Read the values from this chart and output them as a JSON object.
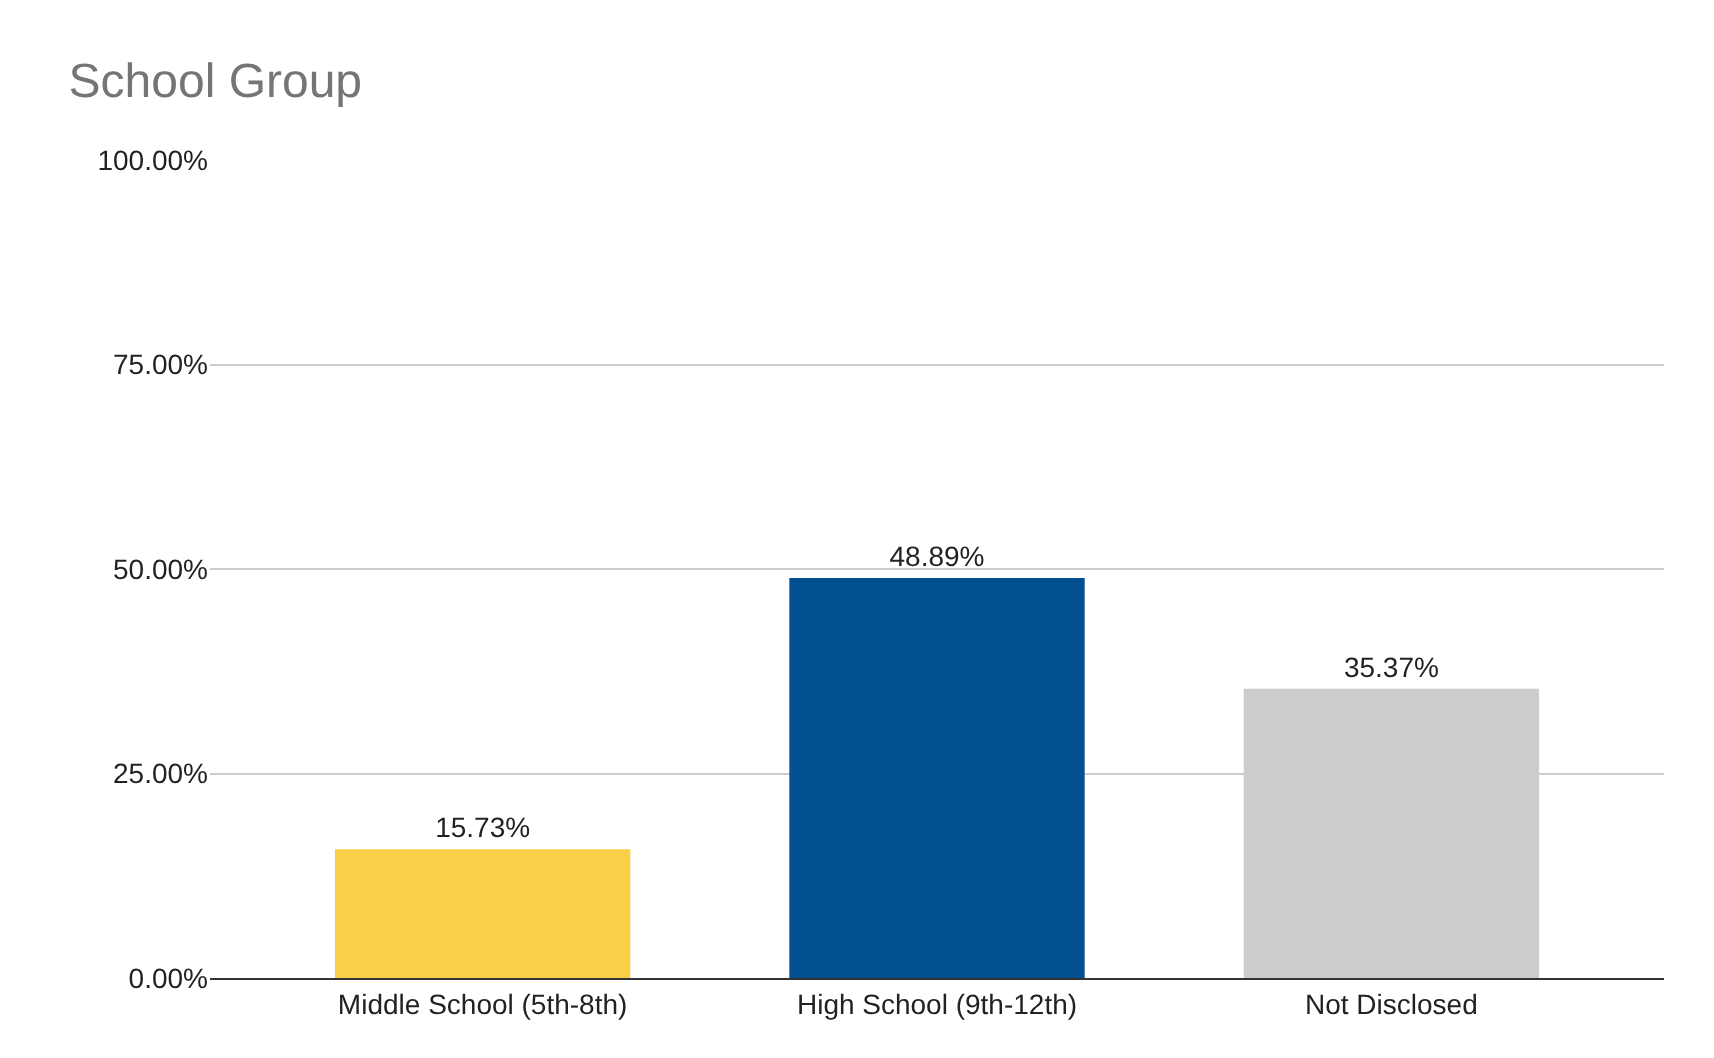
{
  "chart_data": {
    "type": "bar",
    "title": "School Group",
    "categories": [
      "Middle School (5th-8th)",
      "High School (9th-12th)",
      "Not Disclosed"
    ],
    "values": [
      15.73,
      48.89,
      35.37
    ],
    "colors": [
      "#f9cf47",
      "#024f92",
      "#cccccc"
    ],
    "value_labels": [
      "15.73%",
      "48.89%",
      "35.37%"
    ],
    "ylim": [
      0,
      100
    ],
    "yticks": [
      {
        "value": 0,
        "label": "0.00%"
      },
      {
        "value": 25,
        "label": "25.00%"
      },
      {
        "value": 50,
        "label": "50.00%"
      },
      {
        "value": 75,
        "label": "75.00%"
      },
      {
        "value": 100,
        "label": "100.00%"
      }
    ],
    "grid": "y"
  }
}
